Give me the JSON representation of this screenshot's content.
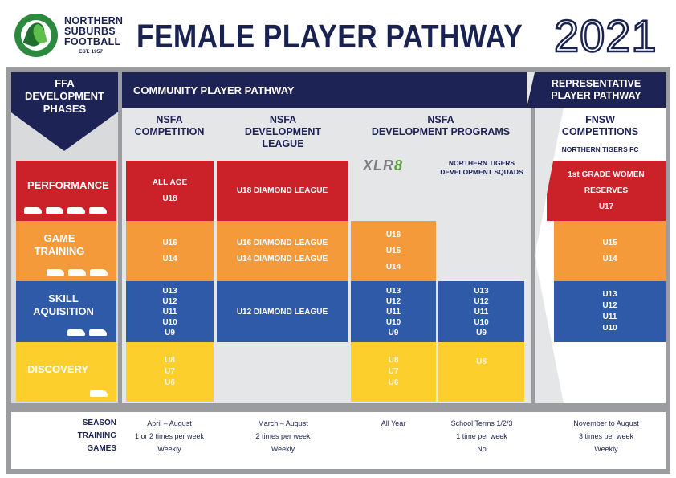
{
  "header": {
    "club_line1": "NORTHERN",
    "club_line2": "SUBURBS",
    "club_line3": "FOOTBALL",
    "club_est": "EST. 1957",
    "title": "FEMALE PLAYER PATHWAY",
    "year": "2021"
  },
  "sections": {
    "ffa": [
      "FFA",
      "DEVELOPMENT",
      "PHASES"
    ],
    "community": "COMMUNITY PLAYER PATHWAY",
    "representative": [
      "REPRESENTATIVE",
      "PLAYER PATHWAY"
    ]
  },
  "columns": {
    "competition": [
      "NSFA",
      "COMPETITION"
    ],
    "dev_league": [
      "NSFA",
      "DEVELOPMENT",
      "LEAGUE"
    ],
    "dev_programs": [
      "NSFA",
      "DEVELOPMENT PROGRAMS"
    ],
    "xlr8_a": "XLR",
    "xlr8_b": "8",
    "tigers_squads": [
      "NORTHERN TIGERS",
      "DEVELOPMENT SQUADS"
    ],
    "fnsw": [
      "FNSW",
      "COMPETITIONS"
    ],
    "fnsw_sub": "NORTHERN TIGERS FC"
  },
  "phases": [
    "PERFORMANCE",
    "GAME TRAINING",
    "SKILL AQUISITION",
    "DISCOVERY"
  ],
  "phase_boots": [
    4,
    3,
    2,
    1
  ],
  "cells": {
    "competition": {
      "performance": [
        "ALL AGE",
        "U18"
      ],
      "game_training": [
        "U16",
        "U14"
      ],
      "skill": [
        "U13",
        "U12",
        "U11",
        "U10",
        "U9"
      ],
      "discovery": [
        "U8",
        "U7",
        "U6"
      ]
    },
    "dev_league": {
      "performance": "U18 DIAMOND LEAGUE",
      "game_training": [
        "U16 DIAMOND LEAGUE",
        "U14 DIAMOND LEAGUE"
      ],
      "skill": "U12 DIAMOND LEAGUE"
    },
    "xlr8": {
      "game_training": [
        "U16",
        "U15",
        "U14"
      ],
      "skill": [
        "U13",
        "U12",
        "U11",
        "U10",
        "U9"
      ],
      "discovery": [
        "U8",
        "U7",
        "U6"
      ]
    },
    "tigers": {
      "skill": [
        "U13",
        "U12",
        "U11",
        "U10",
        "U9"
      ],
      "discovery": [
        "U8"
      ]
    },
    "fnsw": {
      "performance": [
        "1st GRADE WOMEN",
        "RESERVES",
        "U17"
      ],
      "game_training": [
        "U15",
        "U14"
      ],
      "skill": [
        "U13",
        "U12",
        "U11",
        "U10"
      ]
    }
  },
  "footer": {
    "labels": [
      "SEASON",
      "TRAINING",
      "GAMES"
    ],
    "competition": [
      "April – August",
      "1 or 2 times per week",
      "Weekly"
    ],
    "dev_league": [
      "March – August",
      "2 times per week",
      "Weekly"
    ],
    "xlr8": [
      "All Year",
      "",
      ""
    ],
    "tigers": [
      "School Terms 1/2/3",
      "1 time per week",
      "No"
    ],
    "fnsw": [
      "November to August",
      "3 times per week",
      "Weekly"
    ]
  },
  "colors": {
    "navy": "#1d2354",
    "performance": "#cb2129",
    "game_training": "#f59a3a",
    "skill": "#2e5aa8",
    "discovery": "#fccf2c",
    "logo_green": "#2b8a3e"
  }
}
